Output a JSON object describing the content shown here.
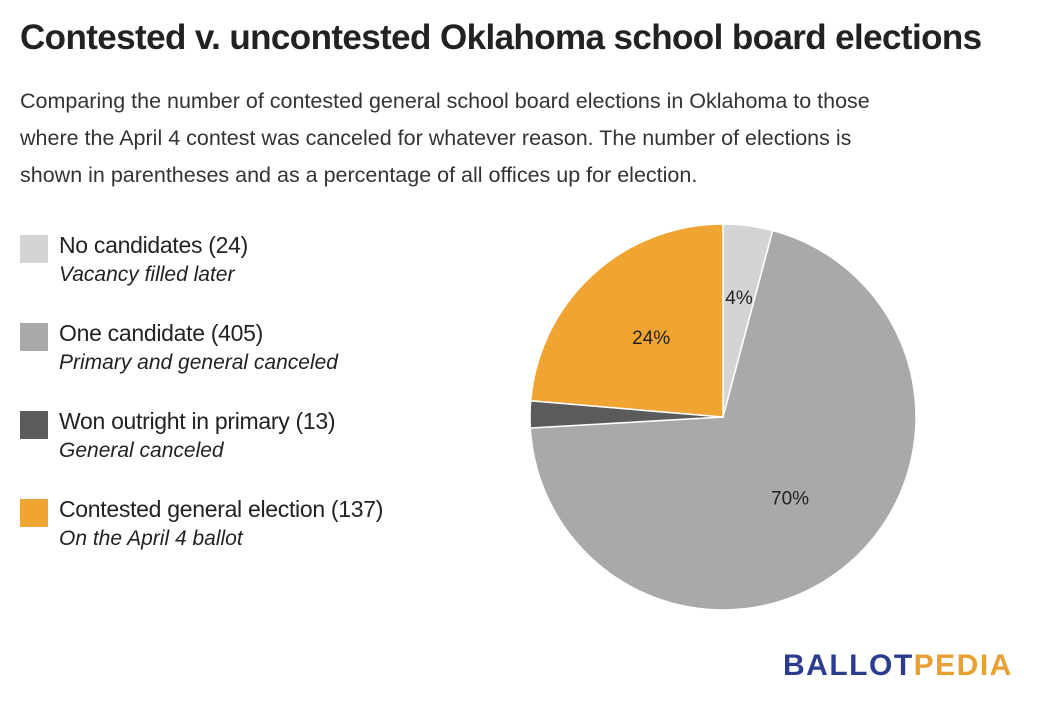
{
  "title": "Contested v. uncontested Oklahoma school board elections",
  "subtitle": [
    "Comparing the number of contested general school board elections in Oklahoma to those",
    "where the April 4 contest was canceled for whatever reason. The number of elections is",
    "shown in parentheses and as a percentage of all offices up for election."
  ],
  "chart_data": {
    "type": "pie",
    "start": "12 o'clock, clockwise",
    "slices": [
      {
        "label": "No candidates (24)",
        "note": "Vacancy filled later",
        "value": 24,
        "percent_label": "4%",
        "color": "#d4d4d4"
      },
      {
        "label": "One candidate (405)",
        "note": "Primary and general canceled",
        "value": 405,
        "percent_label": "70%",
        "color": "#a9a9a9"
      },
      {
        "label": "Won outright in primary (13)",
        "note": "General canceled",
        "value": 13,
        "percent_label": "",
        "color": "#5b5b5b"
      },
      {
        "label": "Contested general election (137)",
        "note": "On the April 4 ballot",
        "value": 137,
        "percent_label": "24%",
        "color": "#f0a431"
      }
    ],
    "legend_position": "left"
  },
  "logo": {
    "part1": "BALLOT",
    "part2": "PEDIA"
  }
}
